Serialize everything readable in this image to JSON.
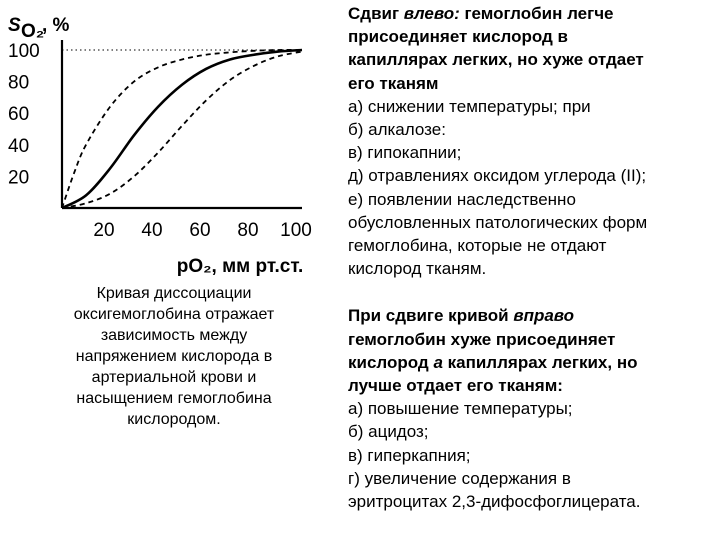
{
  "chart_data": {
    "type": "line",
    "title": "",
    "ylabel_main": "S",
    "ylabel_sub": "O₂",
    "ylabel_suffix": ", %",
    "xlabel": "pO₂, мм рт.ст.",
    "xlim": [
      0,
      100
    ],
    "ylim": [
      0,
      100
    ],
    "x_ticks": [
      "20",
      "40",
      "60",
      "80",
      "100"
    ],
    "y_ticks": [
      "20",
      "40",
      "60",
      "80",
      "100"
    ],
    "grid": false,
    "series": [
      {
        "style": "dashed",
        "x": [
          0,
          5,
          10,
          20,
          30,
          40,
          50,
          60,
          70,
          80,
          90,
          100
        ],
        "y": [
          0,
          22,
          40,
          64,
          80,
          89,
          94,
          97,
          98.5,
          99.5,
          100,
          100
        ]
      },
      {
        "style": "solid",
        "x": [
          0,
          10,
          20,
          30,
          40,
          50,
          60,
          70,
          80,
          90,
          100
        ],
        "y": [
          0,
          8,
          25,
          46,
          64,
          78,
          88,
          94,
          97,
          99,
          100
        ]
      },
      {
        "style": "dashed",
        "x": [
          0,
          10,
          20,
          30,
          40,
          50,
          60,
          70,
          80,
          90,
          100
        ],
        "y": [
          0,
          3,
          9,
          20,
          35,
          52,
          68,
          81,
          90,
          96,
          99
        ]
      }
    ]
  },
  "caption": [
    "Кривая диссоциации",
    "оксигемоглобина отражает",
    "зависимость между",
    "напряжением кислорода в",
    "артериальной крови и",
    "насыщением гемоглобина",
    "кислородом."
  ],
  "left_shift": {
    "h_pre": "Сдвиг ",
    "h_em": "влево:",
    "h_line1_rest": " гемоглобин легче",
    "h_lines": [
      "присоединяет кислород в",
      "капиллярах легких, но хуже отдает",
      "его тканям"
    ],
    "items": [
      "а) снижении температуры; при",
      "б) алкалозе:",
      "в) гипокапнии;",
      "д) отравлениях оксидом углерода (II);",
      "е) появлении наследственно",
      "обусловленных патологических форм",
      "гемоглобина, которые не отдают",
      "кислород тканям."
    ]
  },
  "right_shift": {
    "h_pre": "При сдвиге кривой ",
    "h_em": "вправо",
    "h_lines": [
      "гемоглобин хуже присоединяет"
    ],
    "h_l3_pre": "кислород ",
    "h_l3_em": "а",
    "h_l3_post": " капиллярах легких, но",
    "h_l4": "лучше отдает его тканям:",
    "items": [
      "а) повышение температуры;",
      "б) ацидоз;",
      "в) гиперкапния;",
      "г) увеличение содержания в",
      "эритроцитах 2,3-дифосфоглицерата."
    ]
  }
}
